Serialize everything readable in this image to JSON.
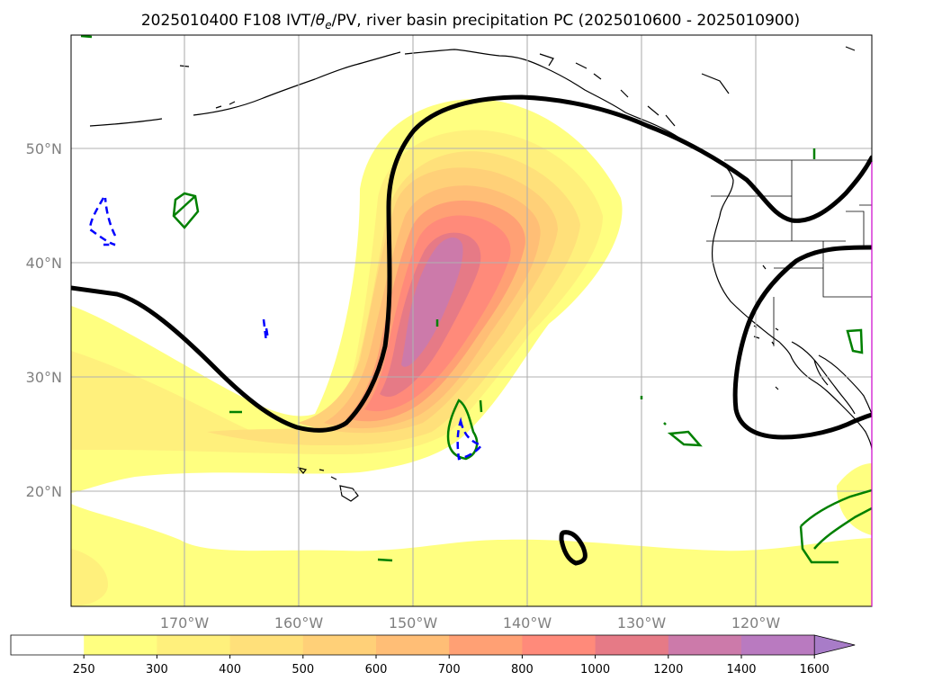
{
  "title_main": "2025010400 F108 IVT/",
  "title_theta": "θ",
  "title_theta_sub": "e",
  "title_rest": "/PV, river basin precipitation PC (2025010600 - 2025010900)",
  "lat_labels": [
    "50°N",
    "40°N",
    "30°N",
    "20°N"
  ],
  "lon_labels": [
    "170°W",
    "160°W",
    "150°W",
    "140°W",
    "130°W",
    "120°W"
  ],
  "colorbar": {
    "levels": [
      "250",
      "300",
      "400",
      "500",
      "600",
      "700",
      "800",
      "1000",
      "1200",
      "1400",
      "1600"
    ],
    "colors": [
      "#ffffff",
      "#ffff80",
      "#fff07c",
      "#ffe07a",
      "#ffd078",
      "#ffbe76",
      "#ffa074",
      "#ff8a7a",
      "#e67a86",
      "#cc7aaa",
      "#b97ac0",
      "#a87cc8"
    ]
  },
  "colors": {
    "ivt_contour_line": "#000000",
    "pv_positive": "#008000",
    "pv_negative": "#0000ff",
    "grid": "#b0b0b0"
  }
}
